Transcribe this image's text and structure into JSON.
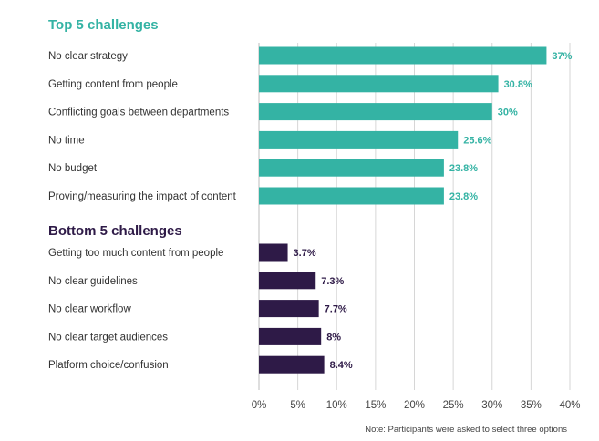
{
  "chart_data": {
    "type": "bar",
    "orientation": "horizontal",
    "xlim": [
      0,
      40
    ],
    "x_ticks": [
      "0%",
      "5%",
      "10%",
      "15%",
      "20%",
      "25%",
      "30%",
      "35%",
      "40%"
    ],
    "grid": true,
    "groups": [
      {
        "title": "Top 5 challenges",
        "color": "#34b3a4",
        "title_color": "#34b3a4",
        "label_color": "#34b3a4",
        "categories": [
          "No clear strategy",
          "Getting content from people",
          "Conflicting goals between departments",
          "No time",
          "No budget",
          "Proving/measuring the impact of content"
        ],
        "values": [
          37,
          30.8,
          30,
          25.6,
          23.8,
          23.8
        ],
        "value_labels": [
          "37%",
          "30.8%",
          "30%",
          "25.6%",
          "23.8%",
          "23.8%"
        ]
      },
      {
        "title": "Bottom 5 challenges",
        "color": "#2e1a47",
        "title_color": "#2e1a47",
        "label_color": "#2e1a47",
        "categories": [
          "Getting too much content from people",
          "No clear guidelines",
          "No clear workflow",
          "No clear target audiences",
          "Platform choice/confusion"
        ],
        "values": [
          3.7,
          7.3,
          7.7,
          8,
          8.4
        ],
        "value_labels": [
          "3.7%",
          "7.3%",
          "7.7%",
          "8%",
          "8.4%"
        ]
      }
    ],
    "note": "Note: Participants were asked to select three options"
  }
}
